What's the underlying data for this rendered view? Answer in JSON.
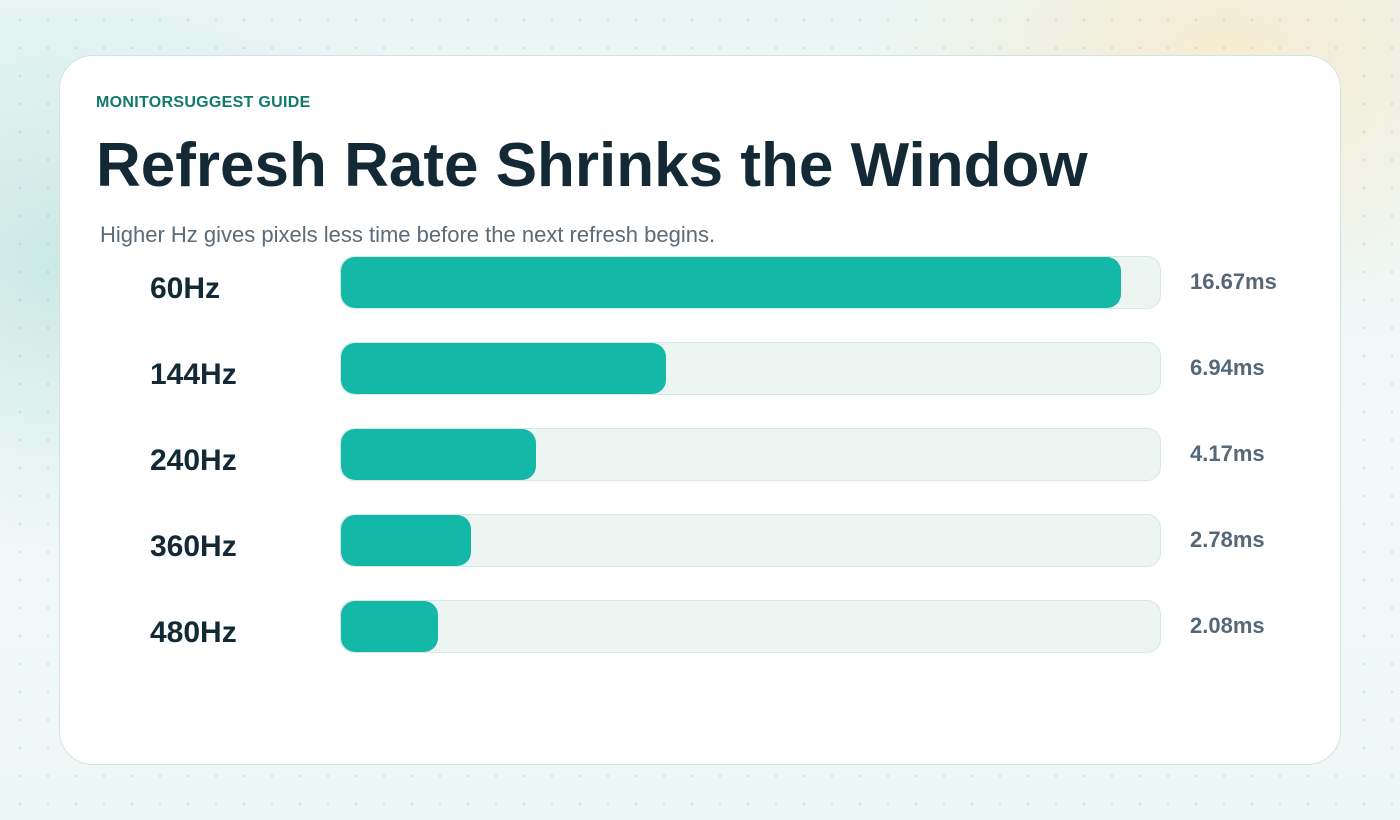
{
  "header": {
    "kicker": "MONITORSUGGEST GUIDE",
    "title": "Refresh Rate Shrinks the Window",
    "subtitle": "Higher Hz gives pixels less time before the next refresh begins."
  },
  "colors": {
    "bar_fill": "#14b8a6",
    "track": "#edf5f3",
    "kicker": "#0f7a6c",
    "title": "#132a36"
  },
  "chart_data": {
    "type": "bar",
    "orientation": "horizontal",
    "categories": [
      "60Hz",
      "144Hz",
      "240Hz",
      "360Hz",
      "480Hz"
    ],
    "values": [
      16.67,
      6.94,
      4.17,
      2.78,
      2.08
    ],
    "value_labels": [
      "16.67ms",
      "6.94ms",
      "4.17ms",
      "2.78ms",
      "2.08ms"
    ],
    "unit": "ms",
    "xlim": [
      0,
      17.5
    ],
    "grid": false,
    "legend": "none"
  }
}
